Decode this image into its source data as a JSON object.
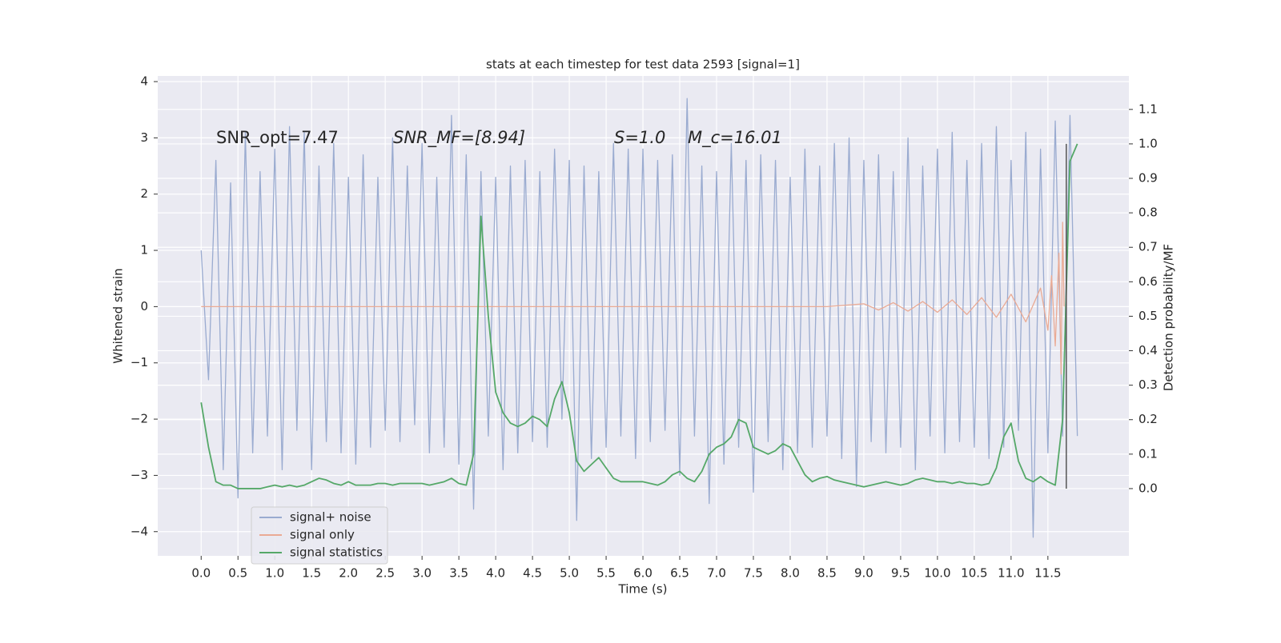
{
  "chart_data": {
    "type": "line",
    "title": "stats at each timestep for test data 2593 [signal=1]",
    "xlabel": "Time (s)",
    "ylabel": "Whitened strain",
    "y2label": "Detection probability/MF",
    "annotations": [
      "SNR_opt=7.47",
      "SNR_MF=[8.94]",
      "S=1.0",
      "M_c=16.01"
    ],
    "x": [
      0,
      0.1,
      0.2,
      0.3,
      0.4,
      0.5,
      0.6,
      0.7,
      0.8,
      0.9,
      1.0,
      1.1,
      1.2,
      1.3,
      1.4,
      1.5,
      1.6,
      1.7,
      1.8,
      1.9,
      2.0,
      2.1,
      2.2,
      2.3,
      2.4,
      2.5,
      2.6,
      2.7,
      2.8,
      2.9,
      3.0,
      3.1,
      3.2,
      3.3,
      3.4,
      3.5,
      3.6,
      3.7,
      3.8,
      3.9,
      4.0,
      4.1,
      4.2,
      4.3,
      4.4,
      4.5,
      4.6,
      4.7,
      4.8,
      4.9,
      5.0,
      5.1,
      5.2,
      5.3,
      5.4,
      5.5,
      5.6,
      5.7,
      5.8,
      5.9,
      6.0,
      6.1,
      6.2,
      6.3,
      6.4,
      6.5,
      6.6,
      6.7,
      6.8,
      6.9,
      7.0,
      7.1,
      7.2,
      7.3,
      7.4,
      7.5,
      7.6,
      7.7,
      7.8,
      7.9,
      8.0,
      8.1,
      8.2,
      8.3,
      8.4,
      8.5,
      8.6,
      8.7,
      8.8,
      8.9,
      9.0,
      9.1,
      9.2,
      9.3,
      9.4,
      9.5,
      9.6,
      9.7,
      9.8,
      9.9,
      10.0,
      10.1,
      10.2,
      10.3,
      10.4,
      10.5,
      10.6,
      10.7,
      10.8,
      10.9,
      11.0,
      11.1,
      11.2,
      11.3,
      11.4,
      11.5,
      11.6,
      11.7,
      11.8,
      11.9
    ],
    "series": [
      {
        "name": "signal+ noise",
        "color": "#9aabd0",
        "values": [
          1.0,
          -1.3,
          2.6,
          -2.9,
          2.2,
          -3.4,
          3.1,
          -2.6,
          2.4,
          -2.3,
          2.8,
          -2.9,
          3.2,
          -2.2,
          3.1,
          -2.9,
          2.5,
          -2.4,
          2.9,
          -2.6,
          2.3,
          -2.8,
          2.7,
          -2.5,
          2.3,
          -2.2,
          3.0,
          -2.4,
          2.5,
          -2.1,
          2.9,
          -2.6,
          2.3,
          -2.5,
          3.4,
          -2.8,
          2.7,
          -3.6,
          2.4,
          -2.3,
          2.3,
          -2.9,
          2.5,
          -2.6,
          2.6,
          -2.4,
          2.4,
          -2.5,
          2.8,
          -2.0,
          2.6,
          -3.8,
          2.5,
          -2.7,
          2.4,
          -2.5,
          2.9,
          -2.3,
          2.8,
          -2.7,
          2.8,
          -2.4,
          2.6,
          -2.2,
          2.7,
          -3.0,
          3.7,
          -2.3,
          2.5,
          -3.5,
          2.4,
          -2.8,
          2.9,
          -2.5,
          2.6,
          -3.3,
          2.7,
          -2.4,
          2.6,
          -2.9,
          2.3,
          -2.6,
          2.8,
          -2.5,
          2.5,
          -2.3,
          2.9,
          -2.7,
          3.0,
          -3.2,
          2.6,
          -2.4,
          2.7,
          -2.6,
          2.4,
          -2.5,
          3.0,
          -2.9,
          2.5,
          -2.3,
          2.8,
          -2.6,
          3.1,
          -2.4,
          2.6,
          -2.5,
          2.9,
          -2.7,
          3.2,
          -2.5,
          2.6,
          -2.2,
          3.1,
          -4.1,
          2.8,
          -2.6,
          3.3,
          -2.3,
          3.4,
          -2.3
        ]
      },
      {
        "name": "signal only",
        "color": "#eaaa94",
        "x": [
          0,
          8.5,
          9.0,
          9.2,
          9.4,
          9.6,
          9.8,
          10.0,
          10.2,
          10.4,
          10.6,
          10.8,
          11.0,
          11.2,
          11.4,
          11.5,
          11.55,
          11.6,
          11.65,
          11.68,
          11.7,
          11.72
        ],
        "values": [
          0,
          0,
          0.05,
          -0.06,
          0.07,
          -0.08,
          0.09,
          -0.1,
          0.12,
          -0.14,
          0.16,
          -0.19,
          0.22,
          -0.27,
          0.33,
          -0.42,
          0.55,
          -0.7,
          0.95,
          -1.2,
          1.5,
          0
        ]
      },
      {
        "name": "signal statistics",
        "color": "#55a868",
        "axis": "y2",
        "values": [
          0.25,
          0.12,
          0.02,
          0.01,
          0.01,
          0.0,
          0.0,
          0.0,
          0.0,
          0.005,
          0.01,
          0.005,
          0.01,
          0.005,
          0.01,
          0.02,
          0.03,
          0.025,
          0.015,
          0.01,
          0.02,
          0.01,
          0.01,
          0.01,
          0.015,
          0.015,
          0.01,
          0.015,
          0.015,
          0.015,
          0.015,
          0.01,
          0.015,
          0.02,
          0.03,
          0.015,
          0.01,
          0.1,
          0.79,
          0.5,
          0.28,
          0.22,
          0.19,
          0.18,
          0.19,
          0.21,
          0.2,
          0.18,
          0.26,
          0.31,
          0.22,
          0.08,
          0.05,
          0.07,
          0.09,
          0.06,
          0.03,
          0.02,
          0.02,
          0.02,
          0.02,
          0.015,
          0.01,
          0.02,
          0.04,
          0.05,
          0.03,
          0.02,
          0.05,
          0.1,
          0.12,
          0.13,
          0.15,
          0.2,
          0.19,
          0.12,
          0.11,
          0.1,
          0.11,
          0.13,
          0.12,
          0.08,
          0.04,
          0.02,
          0.03,
          0.035,
          0.025,
          0.02,
          0.015,
          0.01,
          0.005,
          0.01,
          0.015,
          0.02,
          0.015,
          0.01,
          0.015,
          0.025,
          0.03,
          0.025,
          0.02,
          0.02,
          0.015,
          0.02,
          0.015,
          0.015,
          0.01,
          0.015,
          0.06,
          0.15,
          0.19,
          0.08,
          0.03,
          0.02,
          0.035,
          0.02,
          0.01,
          0.2,
          0.95,
          1.0
        ]
      }
    ],
    "vline": {
      "x": 11.75,
      "ymin": 0,
      "ymax": 1.0,
      "color": "#555555"
    },
    "xlim": [
      -0.59,
      12.6
    ],
    "ylim": [
      -4.43,
      4.1
    ],
    "y2lim": [
      -0.195,
      1.197
    ],
    "xticks": [
      {
        "value": 0,
        "label": "0.0"
      },
      0.5,
      {
        "value": 1,
        "label": "1.0"
      },
      1.5,
      {
        "value": 2,
        "label": "2.0"
      },
      2.5,
      {
        "value": 3,
        "label": "3.0"
      },
      3.5,
      {
        "value": 4,
        "label": "4.0"
      },
      4.5,
      {
        "value": 5,
        "label": "5.0"
      },
      5.5,
      {
        "value": 6,
        "label": "6.0"
      },
      6.5,
      {
        "value": 7,
        "label": "7.0"
      },
      7.5,
      {
        "value": 8,
        "label": "8.0"
      },
      8.5,
      {
        "value": 9,
        "label": "9.0"
      },
      9.5,
      {
        "value": 10,
        "label": "10.0"
      },
      10.5,
      {
        "value": 11,
        "label": "11.0"
      },
      11.5
    ],
    "yticks": [
      {
        "value": -4,
        "label": "−4"
      },
      {
        "value": -3,
        "label": "−3"
      },
      {
        "value": -2,
        "label": "−2"
      },
      {
        "value": -1,
        "label": "−1"
      },
      0,
      1,
      2,
      3,
      4
    ],
    "y2ticks": [
      {
        "value": 0,
        "label": "0.0"
      },
      0.1,
      0.2,
      0.3,
      0.4,
      0.5,
      0.6,
      0.7,
      0.8,
      0.9,
      {
        "value": 1,
        "label": "1.0"
      },
      1.1
    ],
    "grid": true,
    "legend": "lower left"
  }
}
